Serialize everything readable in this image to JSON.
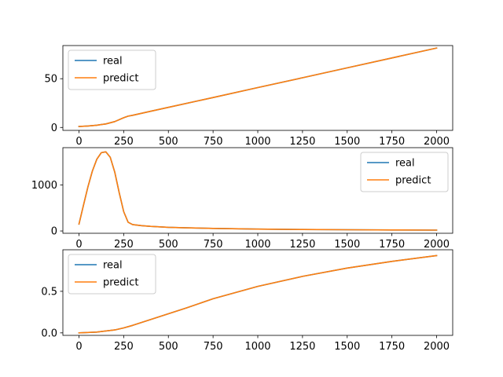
{
  "chart_data": [
    {
      "type": "line",
      "title": "",
      "xlabel": "",
      "ylabel": "",
      "xlim": [
        -90,
        2090
      ],
      "ylim": [
        -3,
        84
      ],
      "xticks": [
        0,
        250,
        500,
        750,
        1000,
        1250,
        1500,
        1750,
        2000
      ],
      "xtick_labels": [
        "0",
        "250",
        "500",
        "750",
        "1000",
        "1250",
        "1500",
        "1750",
        "2000"
      ],
      "yticks": [
        0,
        50
      ],
      "ytick_labels": [
        "0",
        "50"
      ],
      "legend_position": "upper-left",
      "series": [
        {
          "name": "real",
          "color": "#1f77b4",
          "x": [
            0,
            50,
            100,
            150,
            200,
            250,
            275,
            300,
            400,
            500,
            750,
            1000,
            1250,
            1500,
            1750,
            2000
          ],
          "values": [
            1,
            1.5,
            2.3,
            3.6,
            6,
            10,
            11.6,
            12.5,
            16.6,
            20.6,
            30.7,
            40.9,
            51,
            61.1,
            71.3,
            81.4
          ]
        },
        {
          "name": "predict",
          "color": "#ff7f0e",
          "x": [
            0,
            50,
            100,
            150,
            200,
            250,
            275,
            300,
            400,
            500,
            750,
            1000,
            1250,
            1500,
            1750,
            2000
          ],
          "values": [
            1,
            1.5,
            2.3,
            3.6,
            6,
            10,
            11.6,
            12.5,
            16.6,
            20.6,
            30.7,
            40.9,
            51,
            61.1,
            71.3,
            81.4
          ]
        }
      ]
    },
    {
      "type": "line",
      "title": "",
      "xlabel": "",
      "ylabel": "",
      "xlim": [
        -90,
        2090
      ],
      "ylim": [
        -50,
        1810
      ],
      "xticks": [
        0,
        250,
        500,
        750,
        1000,
        1250,
        1500,
        1750,
        2000
      ],
      "xtick_labels": [
        "0",
        "250",
        "500",
        "750",
        "1000",
        "1250",
        "1500",
        "1750",
        "2000"
      ],
      "yticks": [
        0,
        1000
      ],
      "ytick_labels": [
        "0",
        "1000"
      ],
      "legend_position": "upper-right",
      "series": [
        {
          "name": "real",
          "color": "#1f77b4",
          "x": [
            0,
            25,
            50,
            75,
            100,
            125,
            150,
            175,
            200,
            225,
            250,
            275,
            300,
            350,
            400,
            500,
            600,
            750,
            1000,
            1250,
            1500,
            1750,
            2000
          ],
          "values": [
            150,
            560,
            960,
            1300,
            1560,
            1700,
            1720,
            1600,
            1280,
            830,
            420,
            190,
            140,
            115,
            100,
            80,
            67,
            55,
            40,
            32,
            26,
            22,
            18
          ]
        },
        {
          "name": "predict",
          "color": "#ff7f0e",
          "x": [
            0,
            25,
            50,
            75,
            100,
            125,
            150,
            175,
            200,
            225,
            250,
            275,
            300,
            350,
            400,
            500,
            600,
            750,
            1000,
            1250,
            1500,
            1750,
            2000
          ],
          "values": [
            150,
            560,
            960,
            1300,
            1560,
            1700,
            1720,
            1600,
            1280,
            830,
            420,
            190,
            140,
            115,
            100,
            80,
            67,
            55,
            40,
            32,
            26,
            22,
            18
          ]
        }
      ]
    },
    {
      "type": "line",
      "title": "",
      "xlabel": "",
      "ylabel": "",
      "xlim": [
        -90,
        2090
      ],
      "ylim": [
        -0.03,
        1.0
      ],
      "xticks": [
        0,
        250,
        500,
        750,
        1000,
        1250,
        1500,
        1750,
        2000
      ],
      "xtick_labels": [
        "0",
        "250",
        "500",
        "750",
        "1000",
        "1250",
        "1500",
        "1750",
        "2000"
      ],
      "yticks": [
        0,
        0.5
      ],
      "ytick_labels": [
        "0.0",
        "0.5"
      ],
      "legend_position": "upper-left",
      "series": [
        {
          "name": "real",
          "color": "#1f77b4",
          "x": [
            0,
            100,
            200,
            250,
            300,
            400,
            500,
            600,
            750,
            1000,
            1250,
            1500,
            1750,
            2000
          ],
          "values": [
            0,
            0.01,
            0.035,
            0.06,
            0.09,
            0.16,
            0.23,
            0.3,
            0.41,
            0.56,
            0.68,
            0.78,
            0.86,
            0.93
          ]
        },
        {
          "name": "predict",
          "color": "#ff7f0e",
          "x": [
            0,
            100,
            200,
            250,
            300,
            400,
            500,
            600,
            750,
            1000,
            1250,
            1500,
            1750,
            2000
          ],
          "values": [
            0,
            0.01,
            0.035,
            0.06,
            0.09,
            0.16,
            0.23,
            0.3,
            0.41,
            0.56,
            0.68,
            0.78,
            0.86,
            0.93
          ]
        }
      ]
    }
  ]
}
